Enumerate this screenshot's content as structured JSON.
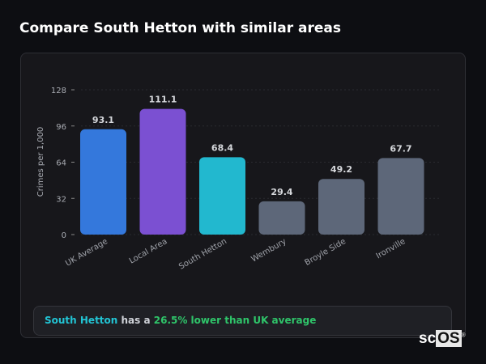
{
  "title": "Compare South Hetton with similar areas",
  "chart_data": {
    "type": "bar",
    "ylabel": "Crimes per 1,000",
    "xlabel": "",
    "ylim": [
      0,
      128
    ],
    "yticks": [
      0,
      32,
      64,
      96,
      128
    ],
    "grid": true,
    "categories": [
      "UK Average",
      "Local Area",
      "South Hetton",
      "Wembury",
      "Broyle Side",
      "Ironville"
    ],
    "values": [
      93.1,
      111.1,
      68.4,
      29.4,
      49.2,
      67.7
    ],
    "value_labels": [
      "93.1",
      "111.1",
      "68.4",
      "29.4",
      "49.2",
      "67.7"
    ],
    "colors": [
      "#3478dc",
      "#7b50d2",
      "#22b8cf",
      "#5d6779",
      "#5d6779",
      "#5d6779"
    ]
  },
  "summary": {
    "area": "South Hetton",
    "middle": " has a ",
    "difference": "26.5% lower than UK average"
  },
  "logo": {
    "text_a": "sc",
    "text_b": "OS",
    "mark": "®"
  }
}
